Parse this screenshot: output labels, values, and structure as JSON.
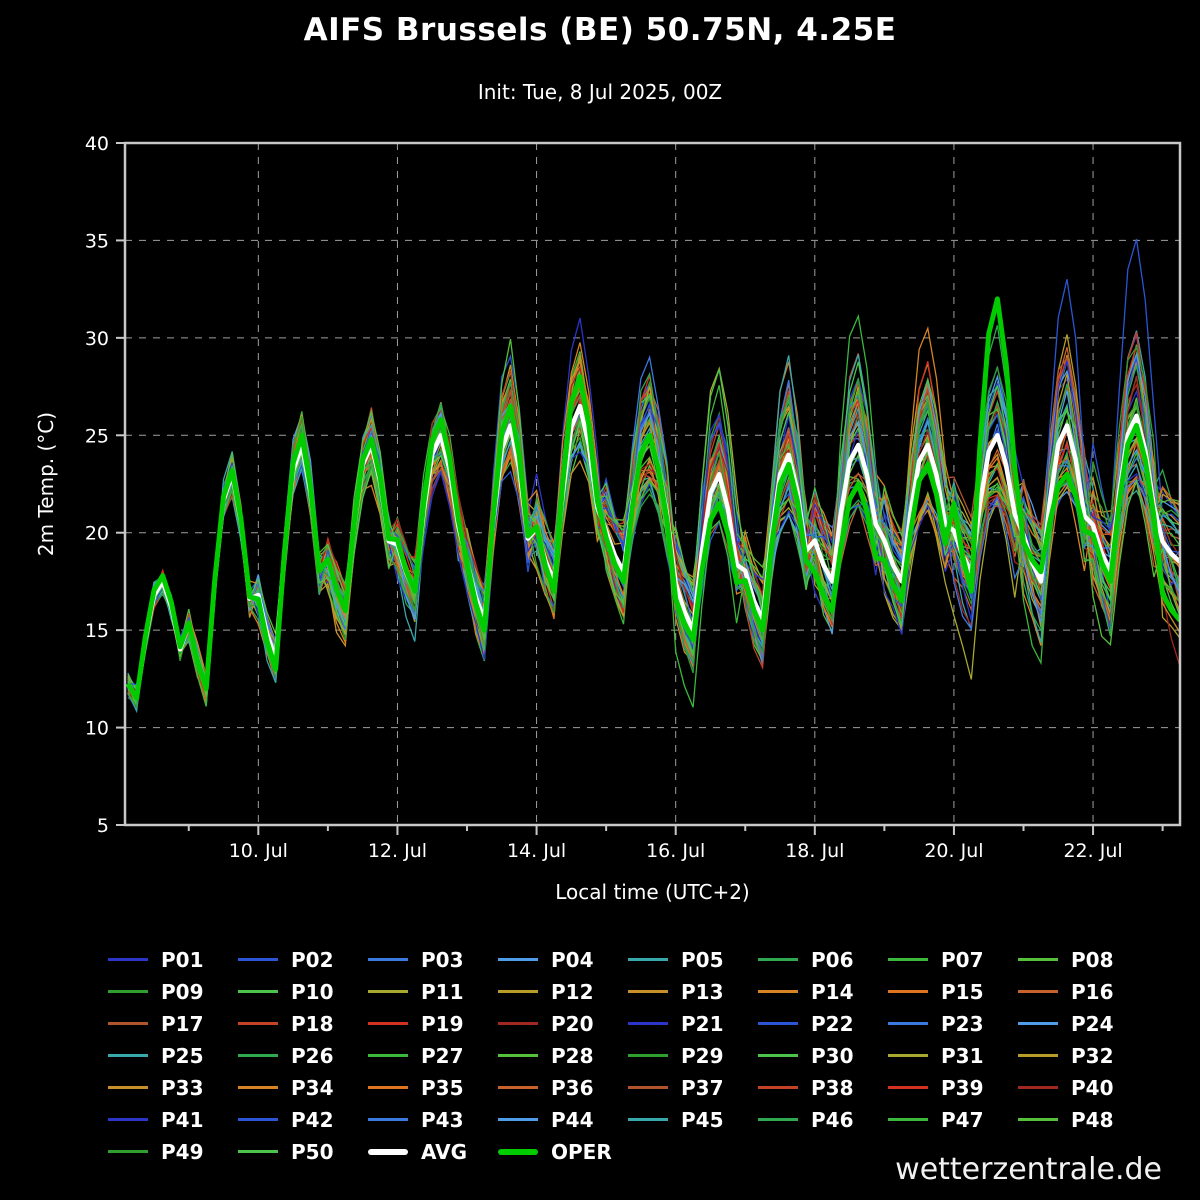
{
  "page": {
    "title": "AIFS Brussels (BE) 50.75N, 4.25E",
    "subtitle": "Init: Tue, 8 Jul 2025, 00Z",
    "watermark": "wetterzentrale.de"
  },
  "chart_data": {
    "type": "line",
    "title": "AIFS Brussels (BE) 50.75N, 4.25E",
    "subtitle": "Init: Tue, 8 Jul 2025, 00Z",
    "xlabel": "Local time (UTC+2)",
    "ylabel": "2m Temp. (°C)",
    "ylim": [
      5,
      40
    ],
    "y_ticks": [
      5,
      10,
      15,
      20,
      25,
      30,
      35,
      40
    ],
    "x_start_hour": 2,
    "x_end_hour": 366,
    "x_ticks": [
      {
        "hour": 48,
        "label": "10. Jul"
      },
      {
        "hour": 96,
        "label": "12. Jul"
      },
      {
        "hour": 144,
        "label": "14. Jul"
      },
      {
        "hour": 192,
        "label": "16. Jul"
      },
      {
        "hour": 240,
        "label": "18. Jul"
      },
      {
        "hour": 288,
        "label": "20. Jul"
      },
      {
        "hour": 336,
        "label": "22. Jul"
      }
    ],
    "grid": true,
    "legend_position": "bottom",
    "diurnal_hours": [
      0,
      3,
      6,
      9,
      12,
      15,
      18,
      21
    ],
    "diurnal_frac": [
      0.3,
      0.12,
      0,
      0.5,
      0.88,
      1,
      0.78,
      0.42
    ],
    "series": {
      "avg": {
        "name": "AVG",
        "color": "#ffffff",
        "daily_min_max": [
          [
            11.5,
            17.5
          ],
          [
            12,
            23
          ],
          [
            13.5,
            24.5
          ],
          [
            16,
            24.5
          ],
          [
            17,
            25
          ],
          [
            15.5,
            25.5
          ],
          [
            17.5,
            26.5
          ],
          [
            18,
            25
          ],
          [
            15,
            23
          ],
          [
            15.5,
            24
          ],
          [
            17.5,
            24.5
          ],
          [
            17.5,
            24.5
          ],
          [
            18,
            25
          ],
          [
            17.5,
            25.5
          ],
          [
            18,
            26
          ],
          [
            18.5,
            22
          ]
        ]
      },
      "oper": {
        "name": "OPER",
        "color": "#00cc00",
        "daily_min_max": [
          [
            11.5,
            17.8
          ],
          [
            12,
            23.2
          ],
          [
            13,
            25
          ],
          [
            16,
            24.8
          ],
          [
            17,
            25.8
          ],
          [
            15,
            26.5
          ],
          [
            17,
            28
          ],
          [
            17.5,
            25
          ],
          [
            14.5,
            21.5
          ],
          [
            15,
            23.5
          ],
          [
            16,
            22.5
          ],
          [
            16.5,
            23.5
          ],
          [
            17,
            32
          ],
          [
            18,
            23
          ],
          [
            17.5,
            25.5
          ],
          [
            15.5,
            20
          ]
        ]
      },
      "members": {
        "count": 50,
        "label_prefix": "P",
        "line_width": 1.3,
        "seed": 20250708,
        "spread_by_day": [
          0.5,
          0.9,
          1.5,
          1.7,
          1.9,
          2.2,
          2.6,
          3.0,
          3.2,
          3.3,
          3.4,
          3.5,
          3.6,
          3.7,
          3.8,
          3.8
        ],
        "palette": [
          "#2b35c8",
          "#2b55d4",
          "#3b79e0",
          "#4f9ce8",
          "#38a8ac",
          "#2fa850",
          "#3cb83c",
          "#55c03a",
          "#2f9e2f",
          "#4cc44c",
          "#a8a830",
          "#b89c28",
          "#c89028",
          "#d88424",
          "#e07420",
          "#c8622c",
          "#b05430",
          "#c44226",
          "#d43220",
          "#a02820"
        ]
      }
    }
  },
  "legend": {
    "labels": [
      "P01",
      "P02",
      "P03",
      "P04",
      "P05",
      "P06",
      "P07",
      "P08",
      "P09",
      "P10",
      "P11",
      "P12",
      "P13",
      "P14",
      "P15",
      "P16",
      "P17",
      "P18",
      "P19",
      "P20",
      "P21",
      "P22",
      "P23",
      "P24",
      "P25",
      "P26",
      "P27",
      "P28",
      "P29",
      "P30",
      "P31",
      "P32",
      "P33",
      "P34",
      "P35",
      "P36",
      "P37",
      "P38",
      "P39",
      "P40",
      "P41",
      "P42",
      "P43",
      "P44",
      "P45",
      "P46",
      "P47",
      "P48",
      "P49",
      "P50",
      "AVG",
      "OPER"
    ]
  }
}
